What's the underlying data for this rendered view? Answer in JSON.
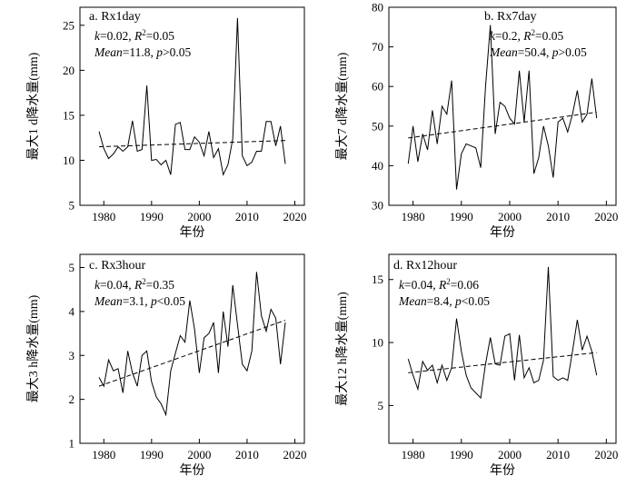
{
  "chart_data": [
    {
      "type": "line",
      "title": "a. Rx1day",
      "xlabel": "年份",
      "ylabel": "最大1 d降水量(mm)",
      "xlim": [
        1975,
        2022
      ],
      "ylim": [
        5,
        27
      ],
      "xticks": [
        1980,
        1990,
        2000,
        2010,
        2020
      ],
      "yticks": [
        5,
        10,
        15,
        20,
        25
      ],
      "stats": {
        "k": "0.02",
        "r2": "0.05",
        "mean": "11.8",
        "p": ">0.05"
      },
      "trend": {
        "x": [
          1979,
          2018
        ],
        "y": [
          11.5,
          12.2
        ]
      },
      "x": [
        1979,
        1980,
        1981,
        1982,
        1983,
        1984,
        1985,
        1986,
        1987,
        1988,
        1989,
        1990,
        1991,
        1992,
        1993,
        1994,
        1995,
        1996,
        1997,
        1998,
        1999,
        2000,
        2001,
        2002,
        2003,
        2004,
        2005,
        2006,
        2007,
        2008,
        2009,
        2010,
        2011,
        2012,
        2013,
        2014,
        2015,
        2016,
        2017,
        2018
      ],
      "values": [
        13.2,
        11.3,
        10.2,
        10.7,
        11.5,
        11,
        11.5,
        14.4,
        11,
        11.2,
        18.3,
        10,
        10.1,
        9.5,
        10,
        8.4,
        14,
        14.2,
        11.2,
        11.2,
        12.6,
        12,
        10.5,
        13.2,
        10.3,
        11.3,
        8.4,
        9.5,
        12.4,
        25.8,
        10.5,
        9.4,
        9.8,
        11,
        11,
        14.3,
        14.3,
        11.6,
        13.8,
        9.6
      ]
    },
    {
      "type": "line",
      "title": "b. Rx7day",
      "xlabel": "年份",
      "ylabel": "最大7 d降水量(mm)",
      "xlim": [
        1975,
        2022
      ],
      "ylim": [
        30,
        80
      ],
      "xticks": [
        1980,
        1990,
        2000,
        2010,
        2020
      ],
      "yticks": [
        30,
        40,
        50,
        60,
        70,
        80
      ],
      "stats": {
        "k": "0.2",
        "r2": "0.05",
        "mean": "50.4",
        "p": ">0.05"
      },
      "trend": {
        "x": [
          1979,
          2018
        ],
        "y": [
          47,
          53.5
        ]
      },
      "x": [
        1979,
        1980,
        1981,
        1982,
        1983,
        1984,
        1985,
        1986,
        1987,
        1988,
        1989,
        1990,
        1991,
        1992,
        1993,
        1994,
        1995,
        1996,
        1997,
        1998,
        1999,
        2000,
        2001,
        2002,
        2003,
        2004,
        2005,
        2006,
        2007,
        2008,
        2009,
        2010,
        2011,
        2012,
        2013,
        2014,
        2015,
        2016,
        2017,
        2018
      ],
      "values": [
        40.5,
        50,
        41,
        48,
        44,
        54,
        45.5,
        55,
        53,
        61.5,
        34,
        43,
        45.5,
        45,
        44.5,
        39.5,
        60,
        75.5,
        48,
        56,
        55,
        52,
        50.5,
        64,
        51,
        64,
        38,
        42,
        50,
        45,
        37,
        51,
        52,
        48.5,
        53,
        59,
        51,
        53,
        62,
        52
      ]
    },
    {
      "type": "line",
      "title": "c. Rx3hour",
      "xlabel": "年份",
      "ylabel": "最大3 h降水量(mm)",
      "xlim": [
        1975,
        2022
      ],
      "ylim": [
        1,
        5.3
      ],
      "xticks": [
        1980,
        1990,
        2000,
        2010,
        2020
      ],
      "yticks": [
        1,
        2,
        3,
        4,
        5
      ],
      "stats": {
        "k": "0.04",
        "r2": "0.35",
        "mean": "3.1",
        "p": "<0.05"
      },
      "trend": {
        "x": [
          1979,
          2018
        ],
        "y": [
          2.3,
          3.8
        ]
      },
      "x": [
        1979,
        1980,
        1981,
        1982,
        1983,
        1984,
        1985,
        1986,
        1987,
        1988,
        1989,
        1990,
        1991,
        1992,
        1993,
        1994,
        1995,
        1996,
        1997,
        1998,
        1999,
        2000,
        2001,
        2002,
        2003,
        2004,
        2005,
        2006,
        2007,
        2008,
        2009,
        2010,
        2011,
        2012,
        2013,
        2014,
        2015,
        2016,
        2017,
        2018
      ],
      "values": [
        2.5,
        2.3,
        2.9,
        2.65,
        2.7,
        2.15,
        3.1,
        2.6,
        2.3,
        3,
        3.1,
        2.4,
        2.05,
        1.9,
        1.65,
        2.65,
        3.05,
        3.45,
        3.3,
        4.25,
        3.6,
        2.6,
        3.4,
        3.5,
        3.75,
        2.6,
        4,
        3.2,
        4.6,
        3.7,
        2.8,
        2.65,
        3.1,
        4.9,
        3.9,
        3.55,
        4.05,
        3.85,
        2.8,
        3.75
      ]
    },
    {
      "type": "line",
      "title": "d. Rx12hour",
      "xlabel": "年份",
      "ylabel": "最大12 h降水量(mm)",
      "xlim": [
        1975,
        2022
      ],
      "ylim": [
        2,
        17
      ],
      "xticks": [
        1980,
        1990,
        2000,
        2010,
        2020
      ],
      "yticks": [
        5,
        10,
        15
      ],
      "stats": {
        "k": "0.04",
        "r2": "0.06",
        "mean": "8.4",
        "p": "<0.05"
      },
      "trend": {
        "x": [
          1979,
          2018
        ],
        "y": [
          7.6,
          9.2
        ]
      },
      "x": [
        1979,
        1980,
        1981,
        1982,
        1983,
        1984,
        1985,
        1986,
        1987,
        1988,
        1989,
        1990,
        1991,
        1992,
        1993,
        1994,
        1995,
        1996,
        1997,
        1998,
        1999,
        2000,
        2001,
        2002,
        2003,
        2004,
        2005,
        2006,
        2007,
        2008,
        2009,
        2010,
        2011,
        2012,
        2013,
        2014,
        2015,
        2016,
        2017,
        2018
      ],
      "values": [
        8.7,
        7.4,
        6.3,
        8.5,
        7.8,
        8.2,
        6.8,
        8.2,
        7,
        8,
        11.9,
        9.3,
        7.4,
        6.4,
        6,
        5.6,
        8.3,
        10.4,
        8.3,
        8.2,
        10.5,
        10.7,
        7,
        10.6,
        7.2,
        8,
        6.8,
        7,
        8.6,
        16,
        7.3,
        7,
        7.2,
        7,
        9.3,
        11.8,
        9.4,
        10.5,
        9.3,
        7.4
      ]
    }
  ]
}
